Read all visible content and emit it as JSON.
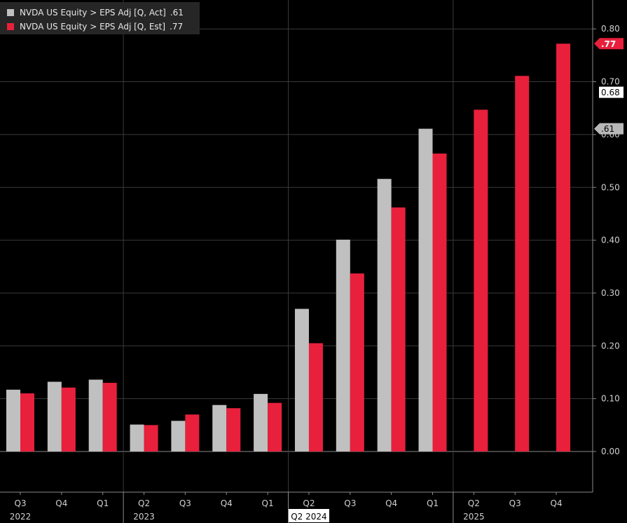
{
  "chart_data": {
    "type": "bar",
    "ylim": [
      -0.08,
      0.85
    ],
    "yticks": [
      0.0,
      0.1,
      0.2,
      0.3,
      0.4,
      0.5,
      0.6,
      0.7,
      0.8
    ],
    "ytick_labels": [
      "0.00",
      "0.10",
      "0.20",
      "0.30",
      "0.40",
      "0.50",
      "0.60",
      "0.70",
      "0.80"
    ],
    "categories": [
      "Q3",
      "Q4",
      "Q1",
      "Q2",
      "Q3",
      "Q4",
      "Q1",
      "Q2",
      "Q3",
      "Q4",
      "Q1",
      "Q2",
      "Q3",
      "Q4"
    ],
    "year_labels": [
      {
        "label": "2022",
        "category_index": 0
      },
      {
        "label": "2023",
        "category_index": 3
      },
      {
        "label": "Q2 2024",
        "category_index": 7,
        "highlighted": true
      },
      {
        "label": "2025",
        "category_index": 11
      }
    ],
    "series": [
      {
        "name": "NVDA US Equity > EPS Adj [Q, Act]",
        "legend_value": ".61",
        "color": "#c0c0c0",
        "values": [
          0.117,
          0.132,
          0.136,
          0.051,
          0.058,
          0.088,
          0.109,
          0.27,
          0.401,
          0.516,
          0.611,
          null,
          null,
          null
        ]
      },
      {
        "name": "NVDA US Equity > EPS Adj [Q, Est]",
        "legend_value": ".77",
        "color": "#e8203c",
        "values": [
          0.11,
          0.121,
          0.13,
          0.05,
          0.07,
          0.082,
          0.092,
          0.205,
          0.337,
          0.462,
          0.564,
          0.647,
          0.711,
          0.772
        ]
      }
    ],
    "price_tags": [
      {
        "label": ".77",
        "value": 0.772,
        "style": "red"
      },
      {
        "label": "0.68",
        "value": 0.68,
        "style": "white"
      },
      {
        "label": ".61",
        "value": 0.611,
        "style": "gray"
      }
    ],
    "grid": true,
    "legend_position": "top-left"
  }
}
